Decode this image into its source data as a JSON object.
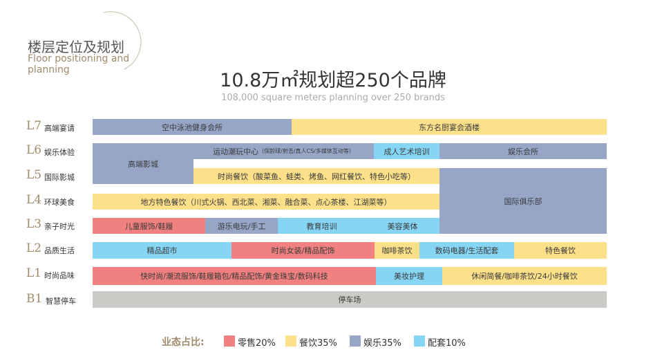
{
  "header": {
    "section_title_cn": "楼层定位及规划",
    "section_title_en_line1": "Floor positioning and",
    "section_title_en_line2": "planning"
  },
  "headline": {
    "main": "10.8万㎡规划超250个品牌",
    "sub": "108,000 square meters planning over 250 brands"
  },
  "floors": [
    {
      "code": "L7",
      "name": "高端宴请"
    },
    {
      "code": "L6",
      "name": "娱乐体验"
    },
    {
      "code": "L5",
      "name": "国际影城"
    },
    {
      "code": "L4",
      "name": "环球美食"
    },
    {
      "code": "L3",
      "name": "亲子时光"
    },
    {
      "code": "L2",
      "name": "品质生活"
    },
    {
      "code": "L1",
      "name": "时尚品味"
    },
    {
      "code": "B1",
      "name": "智慧停车"
    }
  ],
  "blocks": {
    "l7_pool": {
      "label": "空中泳池健身会所",
      "category": "entertainment"
    },
    "l7_banquet": {
      "label": "东方名厨宴会酒楼",
      "category": "dining"
    },
    "l6_cinema": {
      "label": "高端影城",
      "category": "entertainment"
    },
    "l6_sports": {
      "label": "运动潮玩中心",
      "small": "（保龄球/射击/真人CS/多媒体互动等）",
      "category": "entertainment"
    },
    "l6_art": {
      "label": "成人艺术培训",
      "category": "support"
    },
    "l6_club": {
      "label": "娱乐会所",
      "category": "entertainment"
    },
    "l5_dining": {
      "label": "时尚餐饮（酸菜鱼、蛙类、烤鱼、网红餐饮、特色小吃等）",
      "category": "dining"
    },
    "l4_dining": {
      "label": "地方特色餐饮（川式火锅、西北菜、湘菜、融合菜、点心茶楼、江湖菜等）",
      "category": "dining"
    },
    "intl_club": {
      "label": "国际俱乐部",
      "category": "entertainment"
    },
    "l3_kids": {
      "label": "儿童服饰/鞋履",
      "category": "retail"
    },
    "l3_games": {
      "label": "游乐电玩/手工",
      "category": "entertainment"
    },
    "l3_edu": {
      "label": "教育培训",
      "category": "support"
    },
    "l3_beauty": {
      "label": "美容美体",
      "category": "support"
    },
    "l2_super": {
      "label": "精品超市",
      "category": "support"
    },
    "l2_women": {
      "label": "时尚女装/精品配饰",
      "category": "retail"
    },
    "l2_coffee": {
      "label": "咖啡茶饮",
      "category": "dining"
    },
    "l2_digital": {
      "label": "数码电器/生活配套",
      "category": "support"
    },
    "l2_special": {
      "label": "特色餐饮",
      "category": "dining"
    },
    "l1_fashion": {
      "label": "快时尚/潮流服饰/鞋履箱包/精品配饰/黄金珠宝/数码科技",
      "category": "retail"
    },
    "l1_makeup": {
      "label": "美妆护理",
      "category": "support"
    },
    "l1_casual": {
      "label": "休闲简餐/咖啡茶饮/24小时餐饮",
      "category": "dining"
    },
    "b1_parking": {
      "label": "停车场",
      "category": "parking"
    }
  },
  "colors": {
    "retail": "#f18080",
    "dining": "#fde08a",
    "entertainment": "#97a6c7",
    "support": "#86d5f5",
    "parking": "#cccac6",
    "floor_code": "#a08a6a",
    "legend_title": "#a08a6a"
  },
  "legend": {
    "title": "业态占比:",
    "items": [
      {
        "label": "零售20%",
        "category": "retail"
      },
      {
        "label": "餐饮35%",
        "category": "dining"
      },
      {
        "label": "娱乐35%",
        "category": "entertainment"
      },
      {
        "label": "配套10%",
        "category": "support"
      }
    ]
  }
}
